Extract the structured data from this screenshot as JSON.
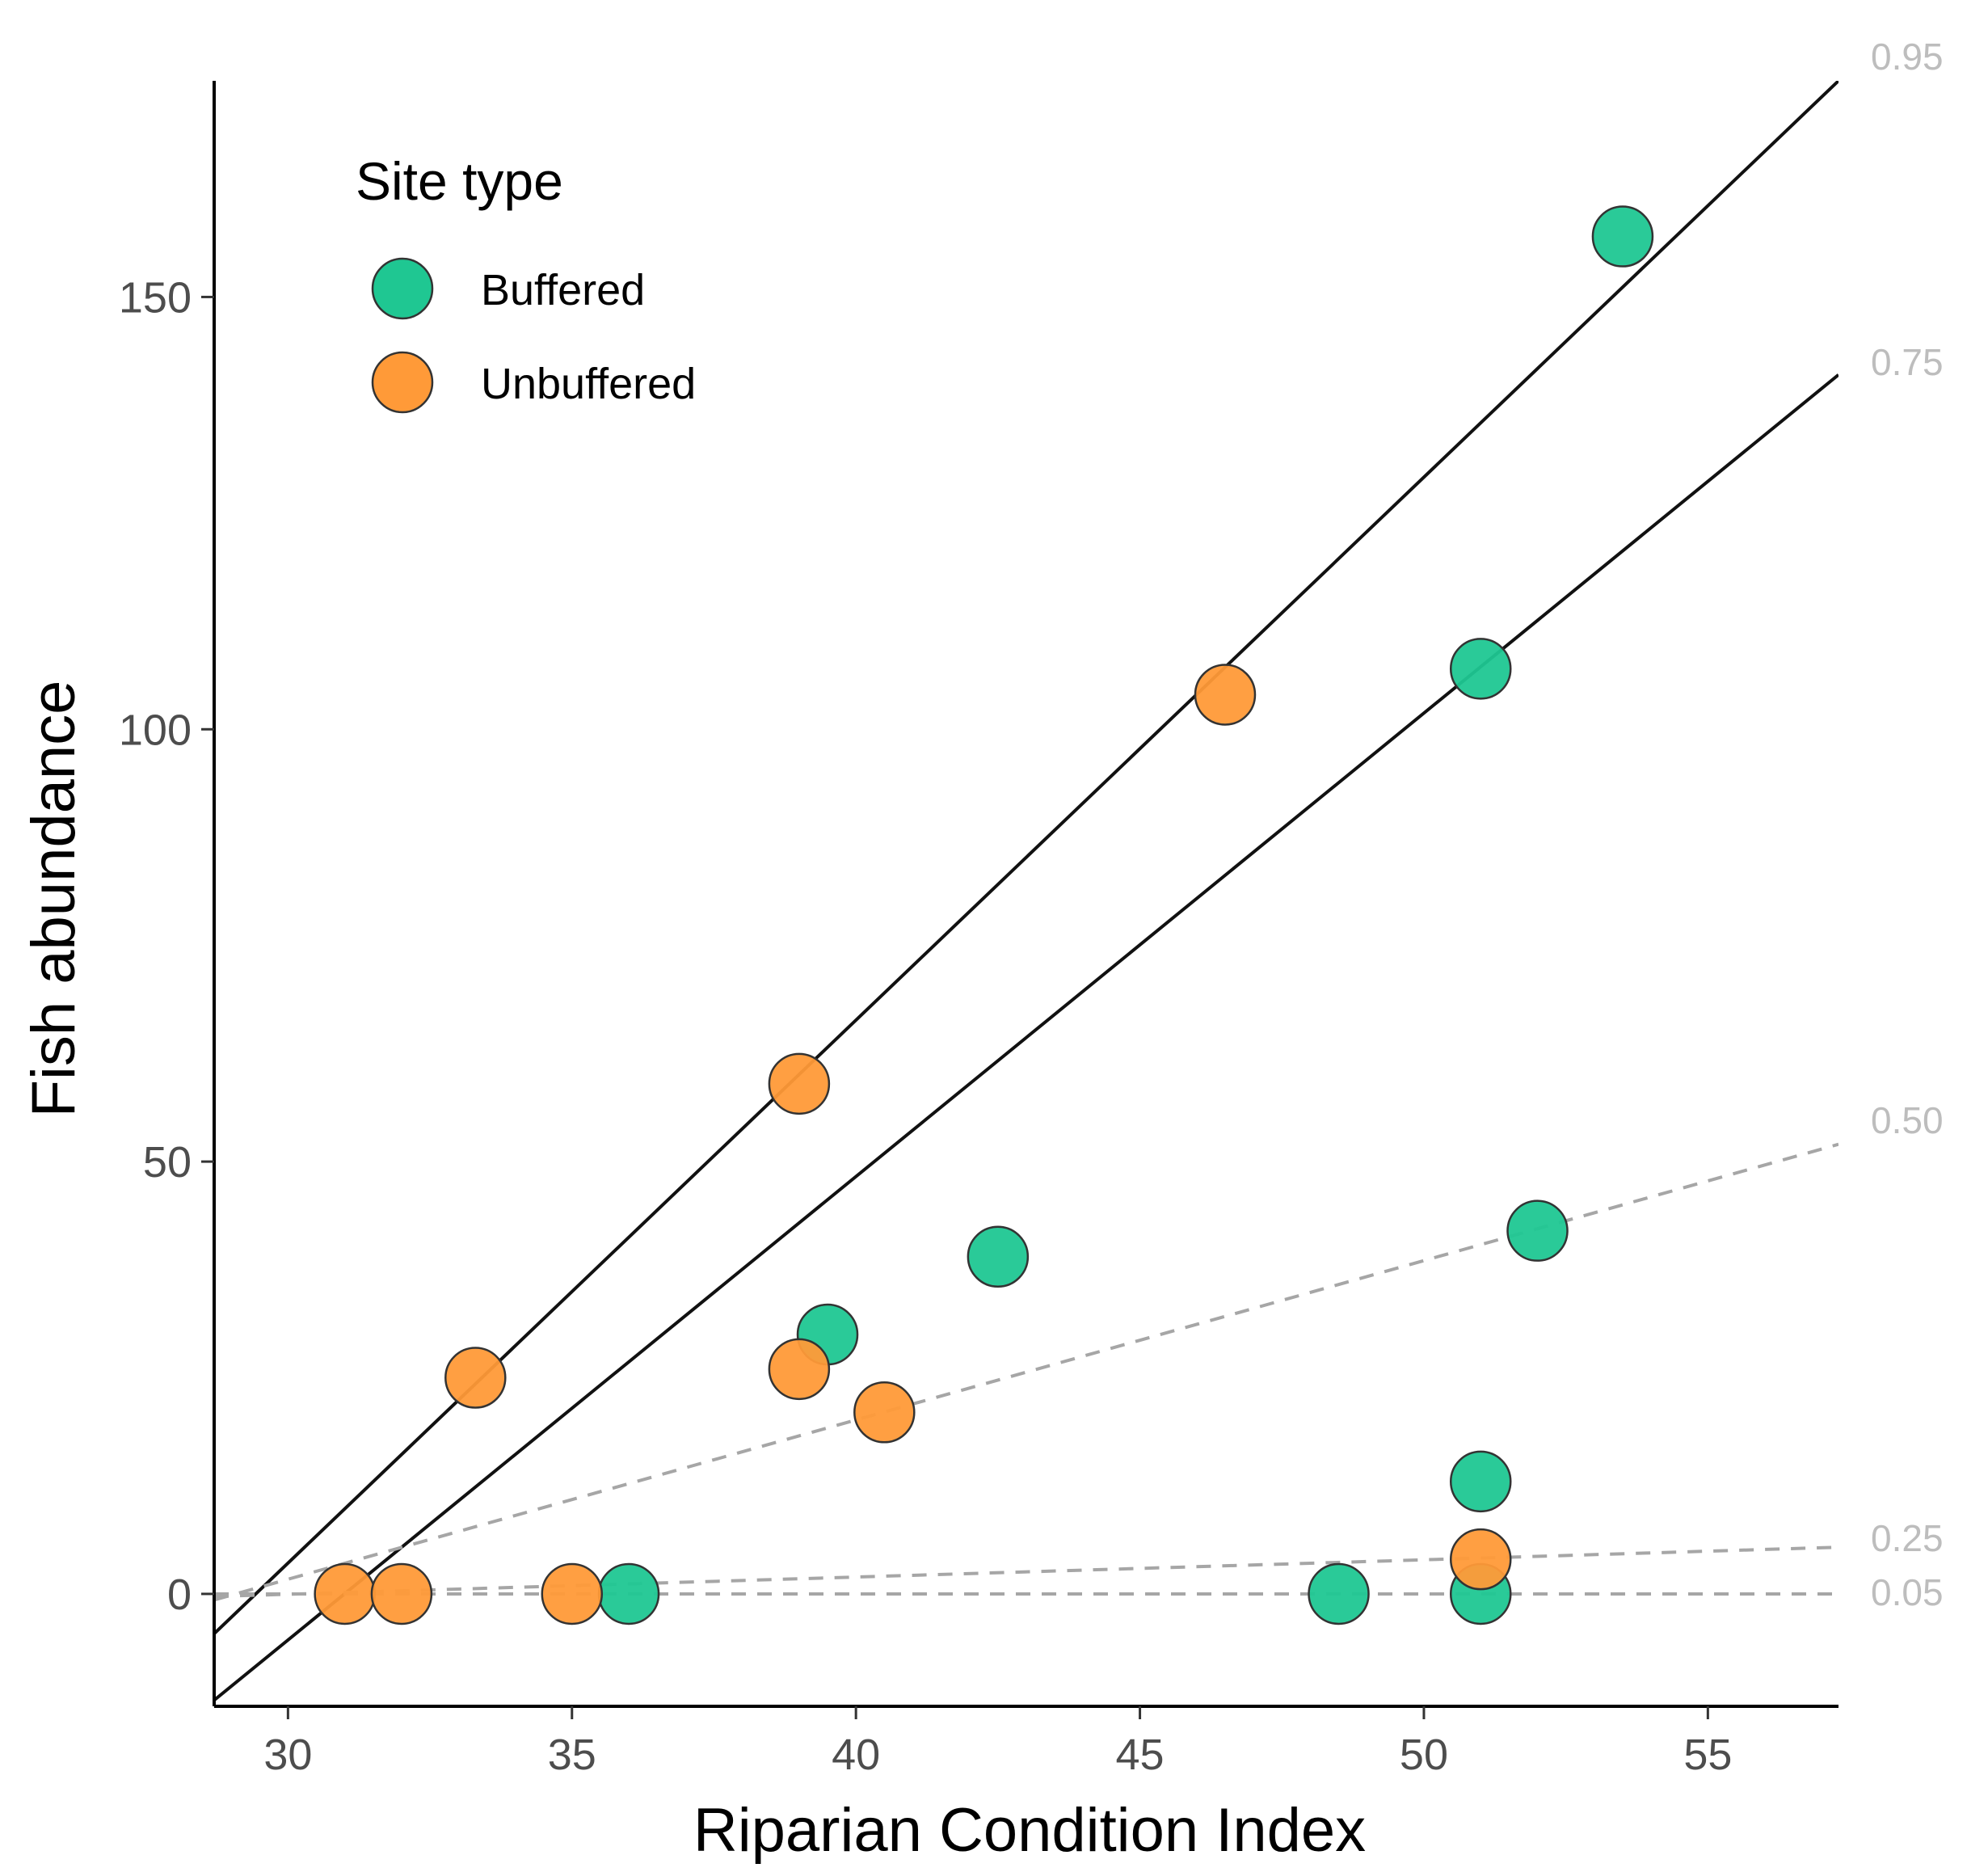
{
  "chart_data": {
    "type": "scatter",
    "xlabel": "Riparian Condition Index",
    "ylabel": "Fish abundance",
    "xlim": [
      28.7,
      57.3
    ],
    "ylim": [
      -13,
      175
    ],
    "xticks": [
      30,
      35,
      40,
      45,
      50,
      55
    ],
    "yticks": [
      0,
      50,
      100,
      150
    ],
    "legend": {
      "title": "Site type",
      "position": "top-left",
      "entries": [
        {
          "label": "Buffered",
          "color": "#1fc792"
        },
        {
          "label": "Unbuffered",
          "color": "#ff9a38"
        }
      ]
    },
    "series": [
      {
        "name": "Buffered",
        "color": "#1fc792",
        "points": [
          [
            53.5,
            157
          ],
          [
            51,
            107
          ],
          [
            52,
            42
          ],
          [
            42.5,
            39
          ],
          [
            39.5,
            30
          ],
          [
            51,
            13
          ],
          [
            36,
            0
          ],
          [
            48.5,
            0
          ],
          [
            51,
            0
          ]
        ]
      },
      {
        "name": "Unbuffered",
        "color": "#ff9a38",
        "points": [
          [
            46.5,
            104
          ],
          [
            39,
            59
          ],
          [
            33.3,
            25
          ],
          [
            39,
            26
          ],
          [
            40.5,
            21
          ],
          [
            51,
            4
          ],
          [
            31,
            0
          ],
          [
            32,
            0
          ],
          [
            35,
            0
          ]
        ]
      }
    ],
    "quantile_lines": [
      {
        "label": "0.95",
        "style": "solid",
        "x": [
          28.7,
          57.3
        ],
        "y": [
          -4.6,
          175
        ]
      },
      {
        "label": "0.75",
        "style": "solid",
        "x": [
          28.7,
          57.3
        ],
        "y": [
          -12.3,
          141
        ]
      },
      {
        "label": "0.50",
        "style": "dashed",
        "x": [
          28.7,
          57.3
        ],
        "y": [
          -0.7,
          52
        ]
      },
      {
        "label": "0.25",
        "style": "dashed",
        "x": [
          28.7,
          57.3
        ],
        "y": [
          -0.3,
          5.4
        ]
      },
      {
        "label": "0.05",
        "style": "dashed",
        "x": [
          28.7,
          57.3
        ],
        "y": [
          0,
          0
        ]
      }
    ]
  }
}
